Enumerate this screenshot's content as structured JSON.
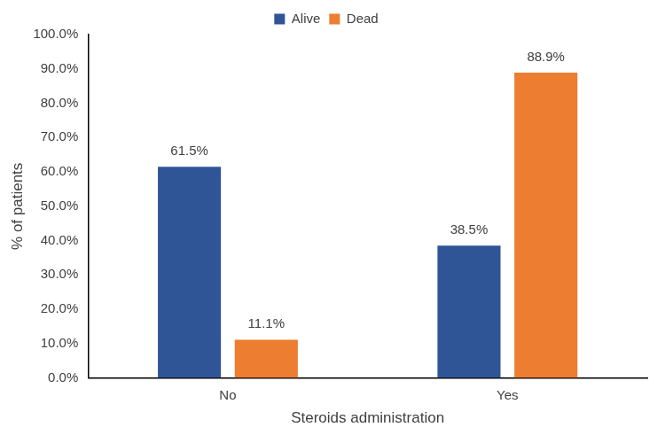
{
  "chart_data": {
    "type": "bar",
    "categories": [
      "No",
      "Yes"
    ],
    "series": [
      {
        "name": "Alive",
        "color": "#2f5597",
        "values": [
          61.5,
          38.5
        ],
        "value_labels": [
          "61.5%",
          "38.5%"
        ]
      },
      {
        "name": "Dead",
        "color": "#ed7d31",
        "values": [
          11.1,
          88.9
        ],
        "value_labels": [
          "11.1%",
          "88.9%"
        ]
      }
    ],
    "x_label": "Steroids administration",
    "y_label": "% of patients",
    "ylim": [
      0,
      100
    ],
    "yticks": [
      {
        "value": 0,
        "label": "0.0%"
      },
      {
        "value": 10,
        "label": "10.0%"
      },
      {
        "value": 20,
        "label": "20.0%"
      },
      {
        "value": 30,
        "label": "30.0%"
      },
      {
        "value": 40,
        "label": "40.0%"
      },
      {
        "value": 50,
        "label": "50.0%"
      },
      {
        "value": 60,
        "label": "60.0%"
      },
      {
        "value": 70,
        "label": "70.0%"
      },
      {
        "value": 80,
        "label": "80.0%"
      },
      {
        "value": 90,
        "label": "90.0%"
      },
      {
        "value": 100,
        "label": "100.0%"
      }
    ],
    "grid": false,
    "legend": "top",
    "data_labels": true
  }
}
